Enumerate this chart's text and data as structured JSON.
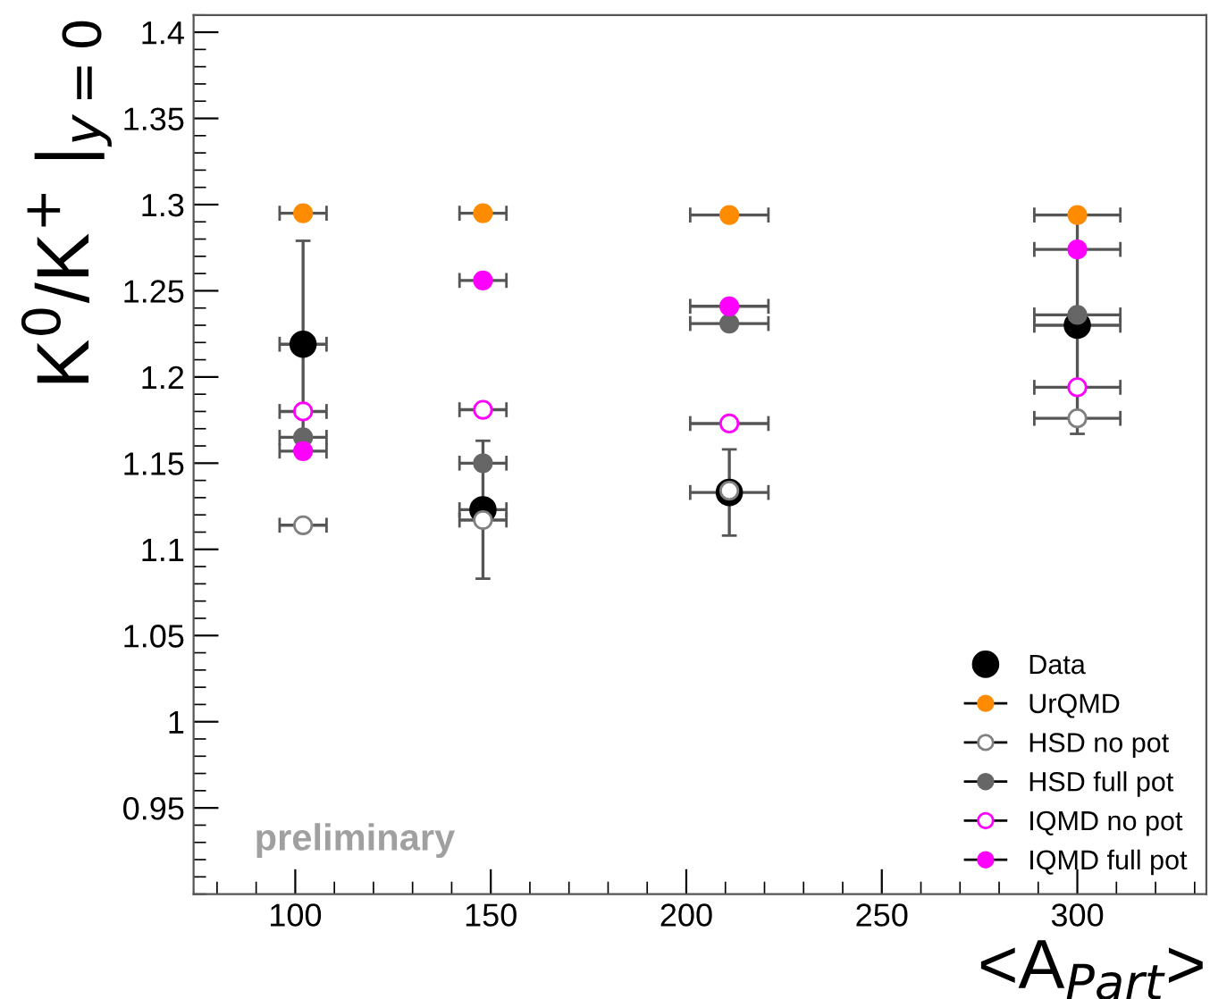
{
  "chart_data": {
    "type": "scatter",
    "xlabel": "<A$_{Part}$>",
    "ylabel": "K$^{0}$/K$^{+}$ |$_{y=0}$",
    "x": [
      102,
      148,
      211,
      300
    ],
    "xlim": [
      74,
      333
    ],
    "xticks": [
      100,
      150,
      200,
      250,
      300
    ],
    "ylim": [
      0.9,
      1.41
    ],
    "yticks": [
      0.95,
      {
        "value": 1.0,
        "label": "1"
      },
      1.05,
      1.1,
      1.15,
      1.2,
      1.25,
      1.3,
      1.35,
      1.4
    ],
    "grid": false,
    "legend": "bottom right",
    "marker": "circle",
    "annotations": [
      "preliminary"
    ],
    "series": [
      {
        "name": "Data",
        "color": "#000000",
        "values": [
          1.219,
          1.123,
          1.133,
          1.23
        ],
        "errors": [
          0.06,
          0.04,
          0.025,
          0.063
        ],
        "xerrors": [
          6,
          6,
          10,
          11
        ]
      },
      {
        "name": "UrQMD",
        "color": "#ff8c00",
        "values": [
          1.295,
          1.295,
          1.294,
          1.294
        ],
        "xerrors": [
          6,
          6,
          10,
          11
        ]
      },
      {
        "name": "HSD no pot",
        "color": "#808080",
        "marker": "circle-open",
        "values": [
          1.114,
          1.117,
          1.134,
          1.176
        ],
        "xerrors": [
          6,
          6,
          null,
          11
        ]
      },
      {
        "name": "HSD full pot",
        "color": "#666666",
        "values": [
          1.165,
          1.15,
          1.231,
          1.236
        ],
        "xerrors": [
          6,
          6,
          10,
          11
        ]
      },
      {
        "name": "IQMD no pot",
        "color": "#ff00ff",
        "marker": "circle-open",
        "values": [
          1.18,
          1.181,
          1.173,
          1.194
        ],
        "xerrors": [
          6,
          6,
          10,
          11
        ]
      },
      {
        "name": "IQMD full pot",
        "color": "#ff00ff",
        "values": [
          1.157,
          1.256,
          1.241,
          1.274
        ],
        "xerrors": [
          6,
          6,
          10,
          11
        ]
      }
    ]
  }
}
